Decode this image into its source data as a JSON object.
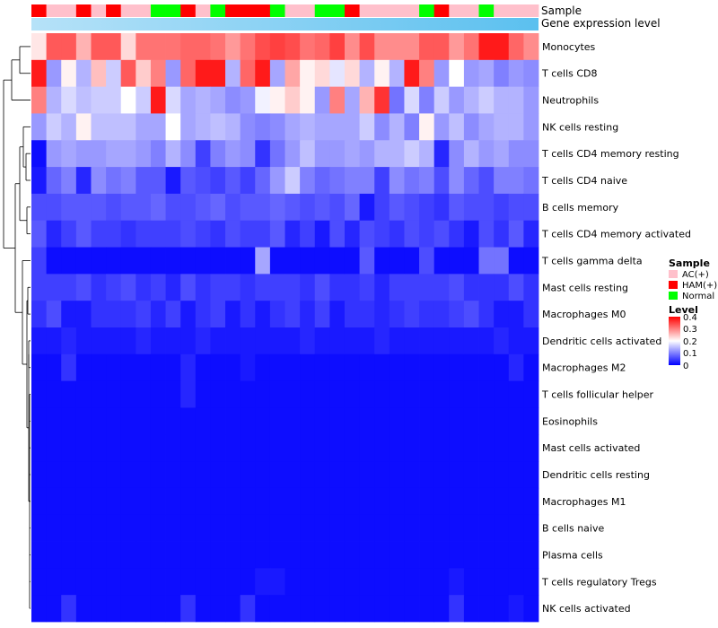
{
  "chart_data": {
    "type": "heatmap",
    "title": "",
    "rows": [
      "Monocytes",
      "T cells CD8",
      "Neutrophils",
      "NK cells resting",
      "T cells CD4 memory resting",
      "T cells CD4 naive",
      "B cells memory",
      "T cells CD4 memory activated",
      "T cells gamma delta",
      "Mast cells resting",
      "Macrophages M0",
      "Dendritic cells activated",
      "Macrophages M2",
      "T cells follicular helper",
      "Eosinophils",
      "Mast cells activated",
      "Dendritic cells resting",
      "Macrophages M1",
      "B cells naive",
      "Plasma cells",
      "T cells regulatory  Tregs",
      "NK cells activated"
    ],
    "sample_groups": [
      "HAM(+)",
      "AC(+)",
      "AC(+)",
      "HAM(+)",
      "AC(+)",
      "HAM(+)",
      "AC(+)",
      "AC(+)",
      "Normal",
      "Normal",
      "HAM(+)",
      "AC(+)",
      "Normal",
      "HAM(+)",
      "HAM(+)",
      "HAM(+)",
      "Normal",
      "AC(+)",
      "AC(+)",
      "Normal",
      "Normal",
      "HAM(+)",
      "AC(+)",
      "AC(+)",
      "AC(+)",
      "AC(+)",
      "Normal",
      "HAM(+)",
      "AC(+)",
      "AC(+)",
      "Normal",
      "AC(+)",
      "AC(+)",
      "AC(+)"
    ],
    "annotation_tracks": [
      "Sample",
      "Gene expression level"
    ],
    "values": [
      [
        0.22,
        0.33,
        0.33,
        0.26,
        0.33,
        0.33,
        0.23,
        0.31,
        0.31,
        0.31,
        0.32,
        0.32,
        0.31,
        0.28,
        0.31,
        0.34,
        0.35,
        0.34,
        0.31,
        0.32,
        0.35,
        0.29,
        0.34,
        0.29,
        0.29,
        0.29,
        0.33,
        0.33,
        0.28,
        0.31,
        0.38,
        0.38,
        0.32,
        0.29
      ],
      [
        0.38,
        0.12,
        0.21,
        0.14,
        0.25,
        0.16,
        0.33,
        0.24,
        0.3,
        0.12,
        0.32,
        0.38,
        0.38,
        0.14,
        0.32,
        0.38,
        0.13,
        0.27,
        0.21,
        0.23,
        0.18,
        0.23,
        0.14,
        0.21,
        0.14,
        0.38,
        0.3,
        0.12,
        0.2,
        0.12,
        0.13,
        0.1,
        0.12,
        0.11
      ],
      [
        0.3,
        0.14,
        0.17,
        0.15,
        0.16,
        0.16,
        0.2,
        0.16,
        0.38,
        0.17,
        0.13,
        0.14,
        0.13,
        0.11,
        0.12,
        0.19,
        0.21,
        0.24,
        0.21,
        0.12,
        0.3,
        0.13,
        0.26,
        0.36,
        0.09,
        0.17,
        0.1,
        0.16,
        0.12,
        0.14,
        0.16,
        0.14,
        0.14,
        0.12
      ],
      [
        0.12,
        0.16,
        0.14,
        0.21,
        0.15,
        0.15,
        0.15,
        0.13,
        0.13,
        0.2,
        0.13,
        0.14,
        0.15,
        0.14,
        0.11,
        0.1,
        0.11,
        0.13,
        0.14,
        0.13,
        0.13,
        0.13,
        0.16,
        0.11,
        0.14,
        0.1,
        0.21,
        0.12,
        0.15,
        0.11,
        0.13,
        0.14,
        0.14,
        0.12
      ],
      [
        0.01,
        0.12,
        0.13,
        0.12,
        0.12,
        0.13,
        0.13,
        0.12,
        0.1,
        0.14,
        0.11,
        0.05,
        0.1,
        0.12,
        0.11,
        0.04,
        0.09,
        0.12,
        0.15,
        0.12,
        0.12,
        0.13,
        0.12,
        0.14,
        0.14,
        0.16,
        0.14,
        0.03,
        0.11,
        0.14,
        0.12,
        0.13,
        0.11,
        0.11
      ],
      [
        0.02,
        0.08,
        0.1,
        0.03,
        0.11,
        0.09,
        0.1,
        0.07,
        0.07,
        0.02,
        0.07,
        0.06,
        0.05,
        0.07,
        0.05,
        0.08,
        0.12,
        0.16,
        0.1,
        0.08,
        0.09,
        0.1,
        0.1,
        0.05,
        0.11,
        0.09,
        0.1,
        0.06,
        0.11,
        0.08,
        0.06,
        0.1,
        0.1,
        0.09
      ],
      [
        0.06,
        0.06,
        0.07,
        0.07,
        0.07,
        0.06,
        0.07,
        0.07,
        0.08,
        0.06,
        0.06,
        0.07,
        0.08,
        0.06,
        0.07,
        0.07,
        0.08,
        0.07,
        0.06,
        0.07,
        0.06,
        0.08,
        0.02,
        0.05,
        0.07,
        0.06,
        0.05,
        0.04,
        0.07,
        0.06,
        0.06,
        0.05,
        0.06,
        0.06
      ],
      [
        0.07,
        0.03,
        0.05,
        0.07,
        0.05,
        0.05,
        0.04,
        0.05,
        0.05,
        0.05,
        0.06,
        0.05,
        0.04,
        0.06,
        0.05,
        0.05,
        0.07,
        0.03,
        0.05,
        0.02,
        0.06,
        0.03,
        0.06,
        0.05,
        0.04,
        0.06,
        0.05,
        0.06,
        0.04,
        0.02,
        0.06,
        0.04,
        0.07,
        0.03
      ],
      [
        0.05,
        0.01,
        0.01,
        0.01,
        0.01,
        0.01,
        0.01,
        0.01,
        0.01,
        0.01,
        0.01,
        0.01,
        0.01,
        0.01,
        0.01,
        0.13,
        0.01,
        0.01,
        0.01,
        0.01,
        0.01,
        0.01,
        0.07,
        0.01,
        0.01,
        0.01,
        0.06,
        0.01,
        0.01,
        0.01,
        0.09,
        0.09,
        0.01,
        0.01
      ],
      [
        0.05,
        0.05,
        0.05,
        0.06,
        0.04,
        0.05,
        0.06,
        0.04,
        0.05,
        0.03,
        0.06,
        0.04,
        0.05,
        0.05,
        0.04,
        0.05,
        0.05,
        0.05,
        0.04,
        0.06,
        0.04,
        0.04,
        0.05,
        0.03,
        0.05,
        0.05,
        0.05,
        0.05,
        0.06,
        0.04,
        0.04,
        0.04,
        0.06,
        0.04
      ],
      [
        0.04,
        0.06,
        0.02,
        0.02,
        0.04,
        0.04,
        0.04,
        0.05,
        0.03,
        0.05,
        0.02,
        0.04,
        0.05,
        0.02,
        0.04,
        0.02,
        0.04,
        0.05,
        0.03,
        0.05,
        0.02,
        0.04,
        0.04,
        0.03,
        0.04,
        0.05,
        0.04,
        0.04,
        0.05,
        0.06,
        0.04,
        0.02,
        0.02,
        0.04
      ],
      [
        0.02,
        0.02,
        0.03,
        0.02,
        0.02,
        0.02,
        0.02,
        0.03,
        0.02,
        0.02,
        0.02,
        0.03,
        0.02,
        0.02,
        0.02,
        0.02,
        0.02,
        0.02,
        0.03,
        0.02,
        0.02,
        0.02,
        0.02,
        0.03,
        0.02,
        0.02,
        0.02,
        0.02,
        0.02,
        0.02,
        0.02,
        0.03,
        0.02,
        0.02
      ],
      [
        0.01,
        0.01,
        0.04,
        0.01,
        0.01,
        0.01,
        0.01,
        0.01,
        0.01,
        0.01,
        0.03,
        0.01,
        0.01,
        0.01,
        0.02,
        0.01,
        0.01,
        0.01,
        0.01,
        0.01,
        0.01,
        0.01,
        0.01,
        0.01,
        0.01,
        0.01,
        0.01,
        0.01,
        0.01,
        0.01,
        0.01,
        0.01,
        0.03,
        0.01
      ],
      [
        0.01,
        0.01,
        0.01,
        0.01,
        0.01,
        0.01,
        0.01,
        0.01,
        0.01,
        0.01,
        0.03,
        0.01,
        0.01,
        0.01,
        0.01,
        0.01,
        0.01,
        0.01,
        0.01,
        0.01,
        0.01,
        0.01,
        0.01,
        0.01,
        0.01,
        0.01,
        0.01,
        0.01,
        0.01,
        0.01,
        0.01,
        0.01,
        0.01,
        0.01
      ],
      [
        0.01,
        0.01,
        0.01,
        0.01,
        0.01,
        0.01,
        0.01,
        0.01,
        0.01,
        0.01,
        0.01,
        0.01,
        0.01,
        0.01,
        0.01,
        0.01,
        0.01,
        0.01,
        0.01,
        0.01,
        0.01,
        0.01,
        0.01,
        0.01,
        0.01,
        0.01,
        0.01,
        0.01,
        0.01,
        0.01,
        0.01,
        0.01,
        0.01,
        0.01
      ],
      [
        0.01,
        0.01,
        0.01,
        0.01,
        0.01,
        0.01,
        0.01,
        0.01,
        0.01,
        0.01,
        0.01,
        0.01,
        0.01,
        0.01,
        0.01,
        0.01,
        0.01,
        0.01,
        0.01,
        0.01,
        0.01,
        0.01,
        0.01,
        0.01,
        0.01,
        0.01,
        0.01,
        0.01,
        0.01,
        0.01,
        0.01,
        0.01,
        0.01,
        0.01
      ],
      [
        0.01,
        0.01,
        0.01,
        0.01,
        0.01,
        0.01,
        0.01,
        0.01,
        0.01,
        0.01,
        0.01,
        0.01,
        0.01,
        0.01,
        0.01,
        0.01,
        0.01,
        0.01,
        0.01,
        0.01,
        0.01,
        0.01,
        0.01,
        0.01,
        0.01,
        0.01,
        0.01,
        0.01,
        0.01,
        0.01,
        0.01,
        0.01,
        0.01,
        0.01
      ],
      [
        0.01,
        0.01,
        0.01,
        0.01,
        0.01,
        0.01,
        0.01,
        0.01,
        0.01,
        0.01,
        0.01,
        0.01,
        0.01,
        0.01,
        0.01,
        0.01,
        0.01,
        0.01,
        0.01,
        0.01,
        0.01,
        0.01,
        0.01,
        0.01,
        0.01,
        0.01,
        0.01,
        0.01,
        0.01,
        0.01,
        0.01,
        0.01,
        0.01,
        0.01
      ],
      [
        0.01,
        0.01,
        0.01,
        0.01,
        0.01,
        0.01,
        0.01,
        0.01,
        0.01,
        0.01,
        0.01,
        0.01,
        0.01,
        0.01,
        0.01,
        0.01,
        0.01,
        0.01,
        0.01,
        0.01,
        0.01,
        0.01,
        0.01,
        0.01,
        0.01,
        0.01,
        0.01,
        0.01,
        0.01,
        0.01,
        0.01,
        0.01,
        0.01,
        0.01
      ],
      [
        0.01,
        0.01,
        0.01,
        0.01,
        0.01,
        0.01,
        0.01,
        0.01,
        0.01,
        0.01,
        0.01,
        0.01,
        0.01,
        0.01,
        0.01,
        0.01,
        0.01,
        0.01,
        0.01,
        0.01,
        0.01,
        0.01,
        0.01,
        0.01,
        0.01,
        0.01,
        0.01,
        0.01,
        0.01,
        0.01,
        0.01,
        0.01,
        0.01,
        0.01
      ],
      [
        0.01,
        0.01,
        0.01,
        0.01,
        0.01,
        0.01,
        0.01,
        0.01,
        0.01,
        0.01,
        0.01,
        0.01,
        0.01,
        0.01,
        0.01,
        0.02,
        0.02,
        0.01,
        0.01,
        0.01,
        0.01,
        0.01,
        0.01,
        0.01,
        0.01,
        0.01,
        0.01,
        0.01,
        0.02,
        0.01,
        0.01,
        0.01,
        0.01,
        0.01
      ],
      [
        0.01,
        0.01,
        0.04,
        0.01,
        0.01,
        0.01,
        0.01,
        0.01,
        0.01,
        0.01,
        0.04,
        0.01,
        0.01,
        0.01,
        0.04,
        0.01,
        0.01,
        0.01,
        0.01,
        0.01,
        0.01,
        0.01,
        0.01,
        0.01,
        0.01,
        0.01,
        0.01,
        0.01,
        0.04,
        0.01,
        0.01,
        0.01,
        0.02,
        0.01
      ]
    ],
    "legend": {
      "sample": {
        "title": "Sample",
        "items": [
          {
            "label": "AC(+)",
            "color": "#ffc0cb"
          },
          {
            "label": "HAM(+)",
            "color": "#ff0000"
          },
          {
            "label": "Normal",
            "color": "#00ff00"
          }
        ]
      },
      "level": {
        "title": "Level",
        "ticks": [
          "0.4",
          "0.3",
          "0.2",
          "0.1",
          "0"
        ],
        "range": [
          0,
          0.4
        ]
      }
    },
    "colors": {
      "low": "#0000ff",
      "mid": "#ffffff",
      "high": "#ff0000",
      "expression_track": "#5bc0ef",
      "expression_track_light": "#b6e2f8",
      "dendrogram": "#000000"
    }
  }
}
